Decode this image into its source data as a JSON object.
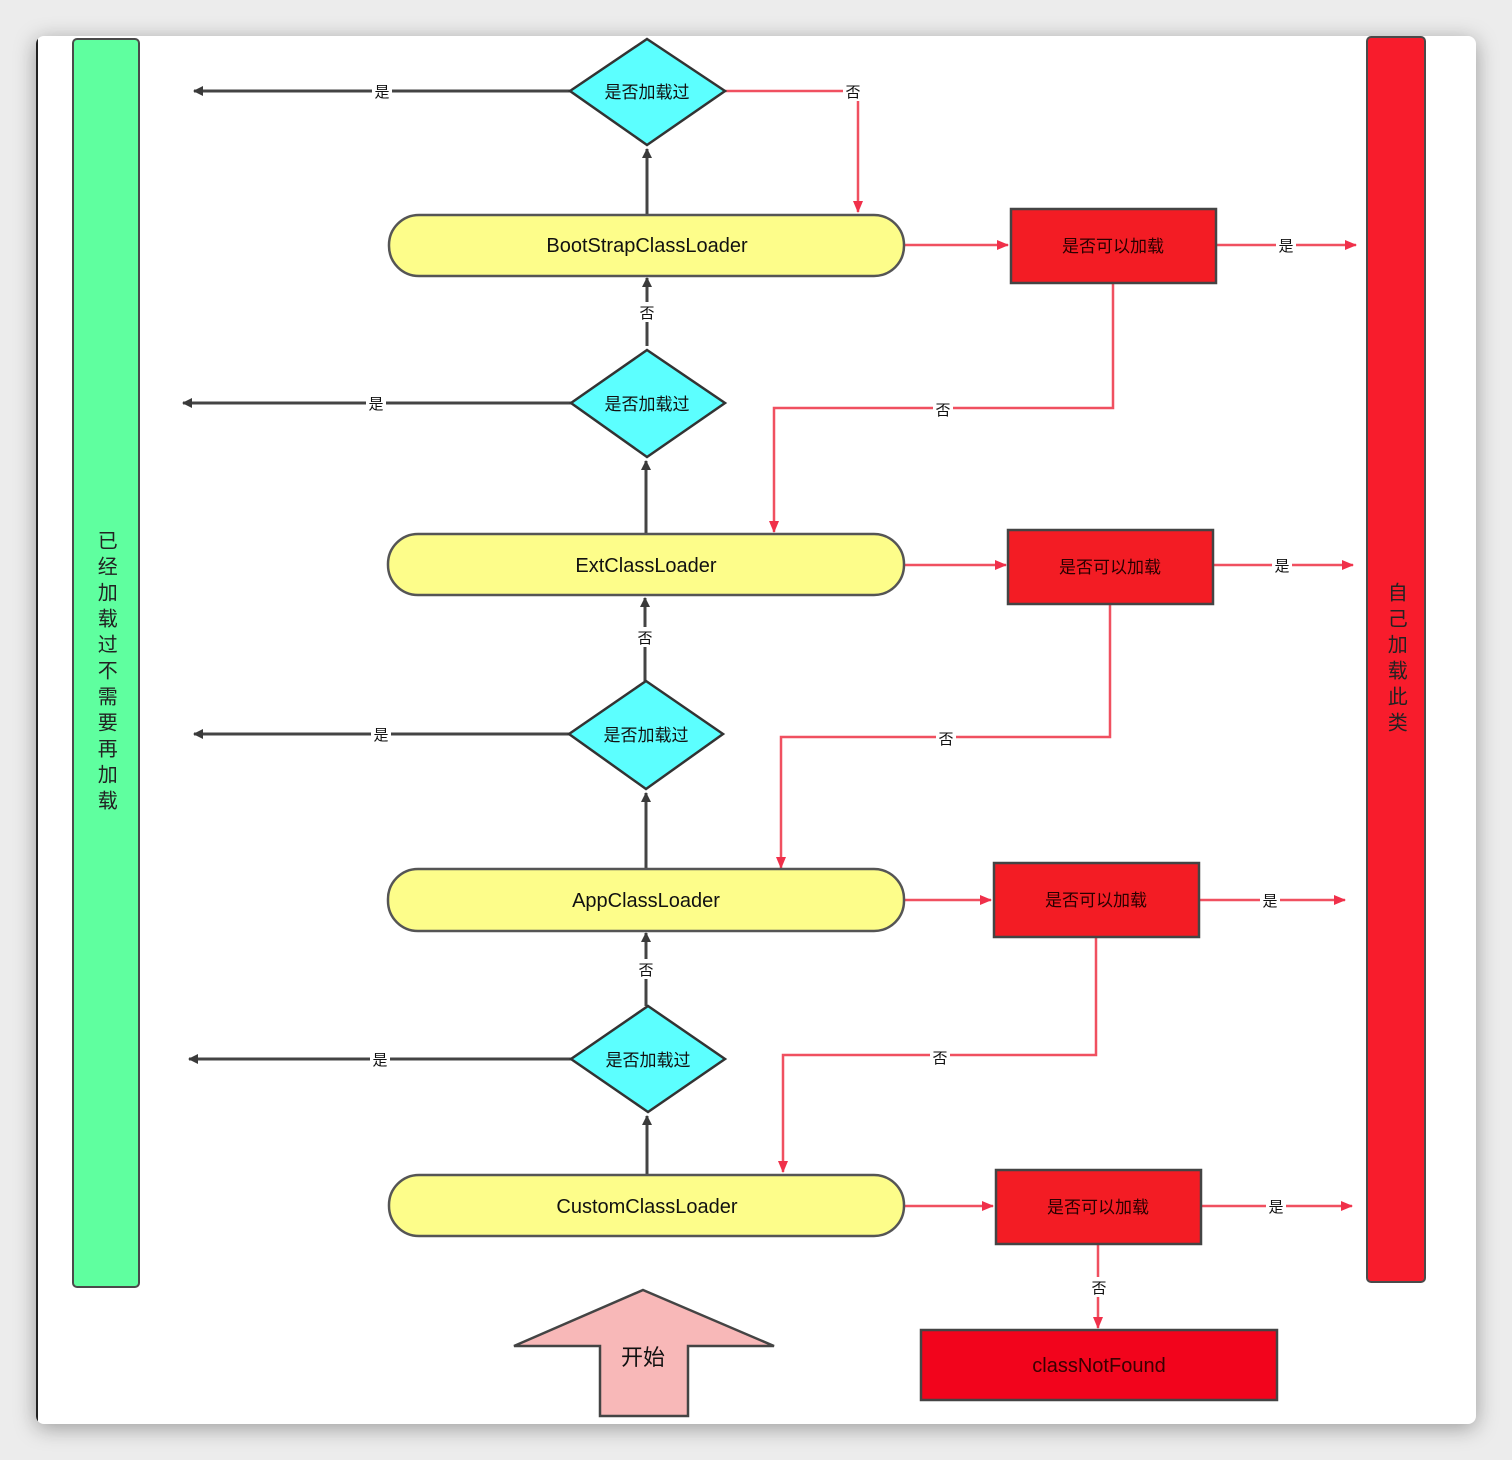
{
  "left_bar": {
    "text": "已经加载过不需要再加载",
    "color": "#5fff9f"
  },
  "right_bar": {
    "text": "自己加载此类",
    "color": "#f81c2c"
  },
  "loaders": [
    {
      "label": "BootStrapClassLoader"
    },
    {
      "label": "ExtClassLoader"
    },
    {
      "label": "AppClassLoader"
    },
    {
      "label": "CustomClassLoader"
    }
  ],
  "diamond_label": "是否加载过",
  "can_load_label": "是否可以加载",
  "yes_label": "是",
  "no_label": "否",
  "start_label": "开始",
  "not_found_label": "classNotFound",
  "colors": {
    "loader_fill": "#fdfd8a",
    "diamond_fill": "#5cffff",
    "red_box": "#f31c24",
    "not_found": "#f2041c",
    "start_arrow": "#f8b8b8",
    "red_line": "#f05060",
    "dark_line": "#444444"
  }
}
